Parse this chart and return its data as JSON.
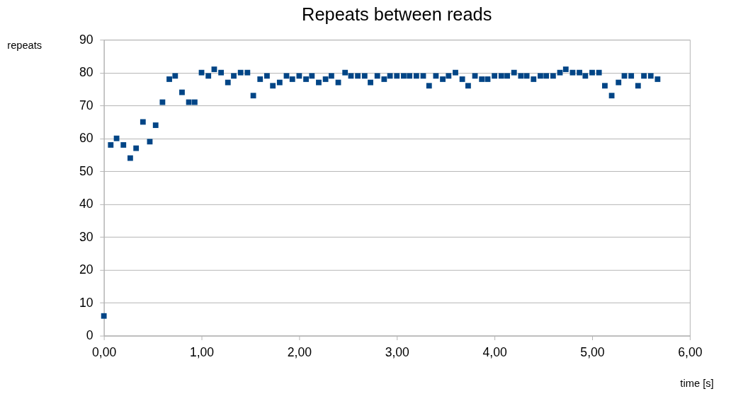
{
  "chart_data": {
    "type": "scatter",
    "title": "Repeats between reads",
    "xlabel": "time [s]",
    "ylabel": "repeats",
    "x": [
      0,
      0.07,
      0.13,
      0.2,
      0.27,
      0.33,
      0.4,
      0.47,
      0.53,
      0.6,
      0.67,
      0.73,
      0.8,
      0.87,
      0.93,
      1.0,
      1.07,
      1.13,
      1.2,
      1.27,
      1.33,
      1.4,
      1.47,
      1.53,
      1.6,
      1.67,
      1.73,
      1.8,
      1.87,
      1.93,
      2.0,
      2.07,
      2.13,
      2.2,
      2.27,
      2.33,
      2.4,
      2.47,
      2.53,
      2.6,
      2.67,
      2.73,
      2.8,
      2.87,
      2.93,
      3.0,
      3.07,
      3.13,
      3.2,
      3.27,
      3.33,
      3.4,
      3.47,
      3.53,
      3.6,
      3.67,
      3.73,
      3.8,
      3.87,
      3.93,
      4.0,
      4.07,
      4.13,
      4.2,
      4.27,
      4.33,
      4.4,
      4.47,
      4.53,
      4.6,
      4.67,
      4.73,
      4.8,
      4.87,
      4.93,
      5.0,
      5.07,
      5.13,
      5.2,
      5.27,
      5.33,
      5.4,
      5.47,
      5.53,
      5.6,
      5.67
    ],
    "series": [
      {
        "color": "#004586",
        "values": [
          6,
          58,
          60,
          58,
          54,
          57,
          65,
          59,
          64,
          71,
          78,
          79,
          74,
          71,
          71,
          80,
          79,
          81,
          80,
          77,
          79,
          80,
          80,
          73,
          78,
          79,
          76,
          77,
          79,
          78,
          79,
          78,
          79,
          77,
          78,
          79,
          77,
          80,
          79,
          79,
          79,
          77,
          79,
          78,
          79,
          79,
          79,
          79,
          79,
          79,
          76,
          79,
          78,
          79,
          80,
          78,
          76,
          79,
          78,
          78,
          79,
          79,
          79,
          80,
          79,
          79,
          78,
          79,
          79,
          79,
          80,
          81,
          80,
          80,
          79,
          80,
          80,
          76,
          73,
          77,
          79,
          79,
          76,
          79,
          79,
          78
        ]
      }
    ],
    "xlim": [
      0,
      6
    ],
    "xticks": [
      {
        "value": 0,
        "label": "0,00"
      },
      {
        "value": 1,
        "label": "1,00"
      },
      {
        "value": 2,
        "label": "2,00"
      },
      {
        "value": 3,
        "label": "3,00"
      },
      {
        "value": 4,
        "label": "4,00"
      },
      {
        "value": 5,
        "label": "5,00"
      },
      {
        "value": 6,
        "label": "6,00"
      }
    ],
    "ylim": [
      0,
      90
    ],
    "yticks": [
      0,
      10,
      20,
      30,
      40,
      50,
      60,
      70,
      80,
      90
    ],
    "grid": "y",
    "legend": false,
    "marker": "square"
  }
}
